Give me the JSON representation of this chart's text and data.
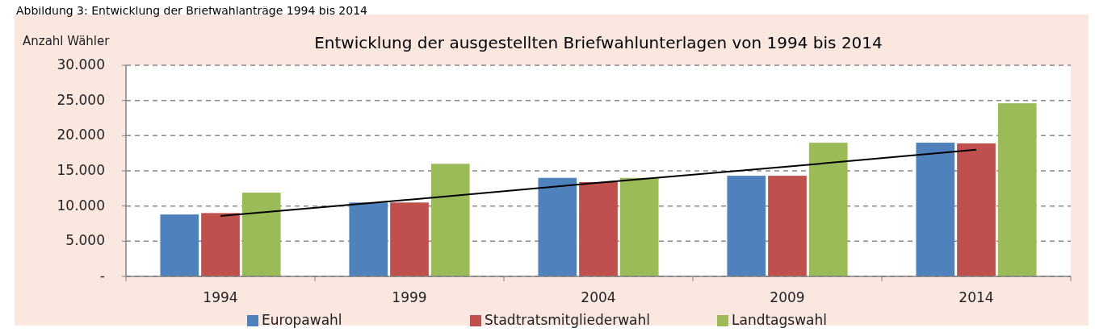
{
  "chart_data": {
    "type": "bar",
    "title": "Entwicklung der ausgestellten Briefwahlunterlagen von 1994 bis 2014",
    "ylabel": "Anzahl Wähler",
    "annotations": [
      "Abbildung 3: Entwicklung der Briefwahlanträge 1994 bis 2014"
    ],
    "categories": [
      "1994",
      "1999",
      "2004",
      "2009",
      "2014"
    ],
    "series": [
      {
        "name": "Europawahl",
        "color": "#4f81bd",
        "values": [
          8800,
          10500,
          14000,
          14300,
          19000
        ]
      },
      {
        "name": "Stadtratsmitgliederwahl",
        "color": "#c0504d",
        "values": [
          9000,
          10500,
          13400,
          14300,
          18900
        ]
      },
      {
        "name": "Landtagswahl",
        "color": "#9bbb59",
        "values": [
          11900,
          16000,
          14000,
          19000,
          24600
        ]
      },
      {
        "type": "line",
        "color": "#000000",
        "values": [
          8600,
          10900,
          13300,
          15600,
          18000
        ]
      }
    ],
    "ylim": [
      0,
      30000
    ],
    "yticks": [
      {
        "value": 0,
        "label": "-"
      },
      {
        "value": 5000,
        "label": "5.000"
      },
      {
        "value": 10000,
        "label": "10.000"
      },
      {
        "value": 15000,
        "label": "15.000"
      },
      {
        "value": 20000,
        "label": "20.000"
      },
      {
        "value": 25000,
        "label": "25.000"
      },
      {
        "value": 30000,
        "label": "30.000"
      }
    ],
    "grid": "y",
    "legend": "bottom"
  }
}
